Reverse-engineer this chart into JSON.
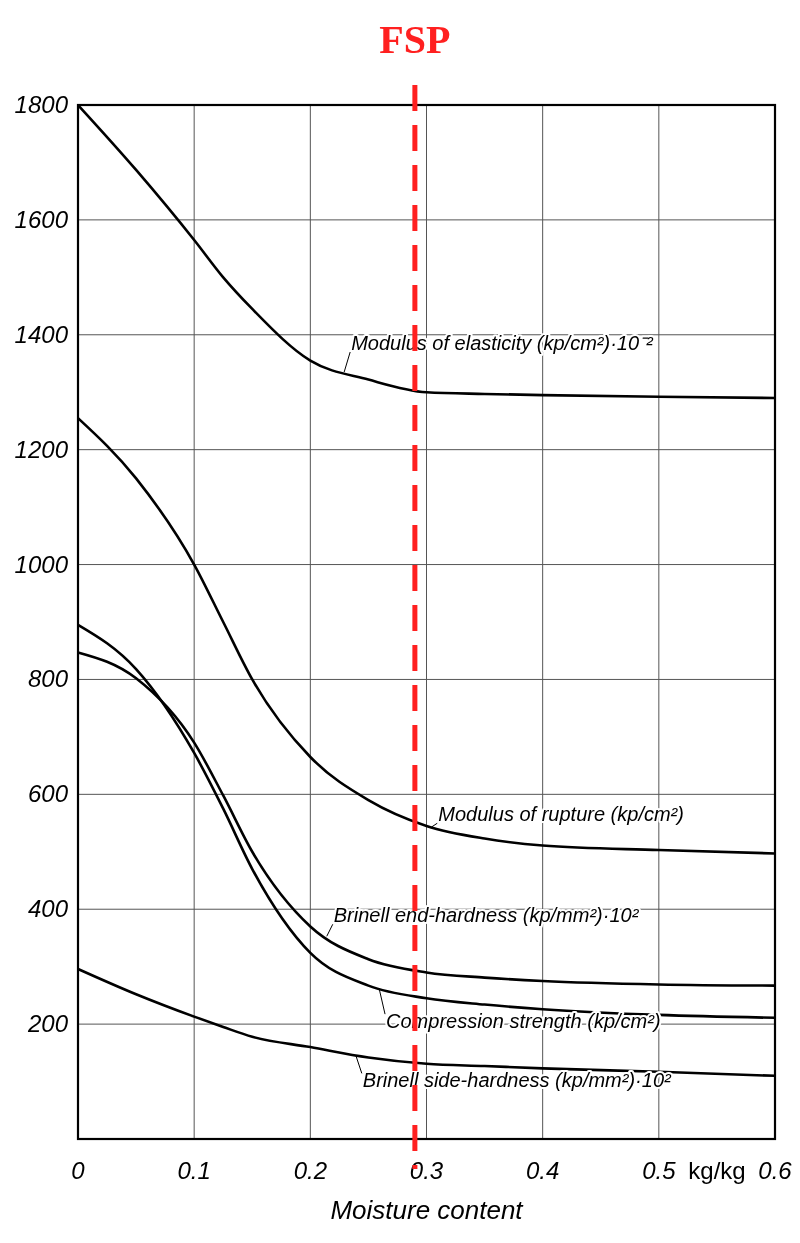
{
  "chart_data": {
    "type": "line",
    "xlabel": "Moisture content",
    "x": [
      0,
      0.05,
      0.1,
      0.125,
      0.15,
      0.2,
      0.25,
      0.3,
      0.35,
      0.4,
      0.5,
      0.6
    ],
    "series": [
      {
        "name": "Modulus of elasticity (kp/cm²)·10⁻²",
        "color": "#000000",
        "values": [
          1800,
          1687,
          1565,
          1500,
          1445,
          1355,
          1322,
          1300,
          1297,
          1295,
          1292,
          1290
        ]
      },
      {
        "name": "Modulus of rupture (kp/cm²)",
        "color": "#000000",
        "values": [
          1255,
          1150,
          1000,
          900,
          800,
          665,
          590,
          545,
          523,
          511,
          503,
          497
        ]
      },
      {
        "name": "Brinell end-hardness (kp/mm²)·10²",
        "color": "#000000",
        "values": [
          847,
          802,
          690,
          598,
          500,
          370,
          313,
          290,
          281,
          275,
          269,
          267
        ]
      },
      {
        "name": "Compression strength (kp/cm²)",
        "color": "#000000",
        "values": [
          895,
          818,
          672,
          575,
          470,
          324,
          267,
          245,
          234,
          226,
          216,
          211
        ]
      },
      {
        "name": "Brinell side-hardness (kp/mm²)·10²",
        "color": "#000000",
        "values": [
          296,
          252,
          213,
          195,
          178,
          160,
          142,
          131,
          127,
          123,
          117,
          110
        ]
      }
    ],
    "xlim": [
      0,
      0.6
    ],
    "xticks": [
      0,
      0.1,
      0.2,
      0.3,
      0.4,
      0.5,
      0.6
    ],
    "ylim": [
      0,
      1800
    ],
    "yticks": [
      200,
      400,
      600,
      800,
      1000,
      1200,
      1400,
      1600,
      1800
    ],
    "annotations": [
      "kg/kg"
    ],
    "ref_lines": [
      {
        "axis": "x",
        "value": 0.29,
        "label": "FSP",
        "color": "#ff2020",
        "line_style": "dashed"
      }
    ],
    "grid": true,
    "marker": "none",
    "line_style": "solid",
    "legend": "right"
  }
}
